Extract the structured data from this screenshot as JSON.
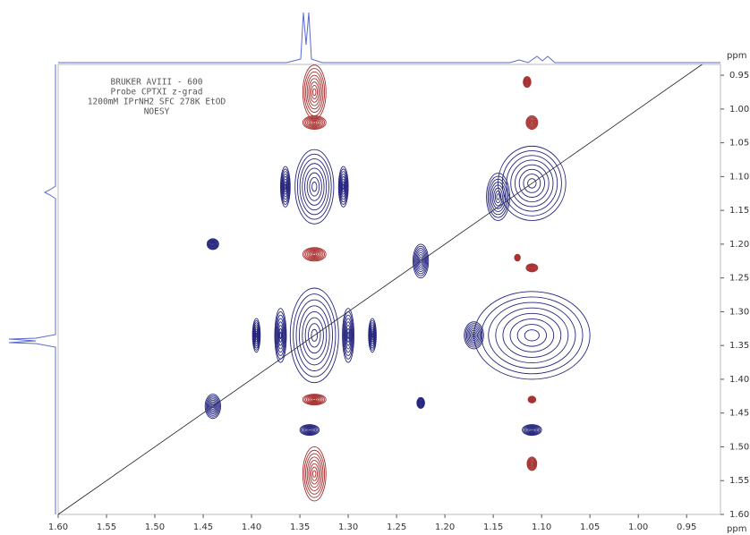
{
  "chart_data": {
    "type": "contour",
    "title_lines": [
      "BRUKER AVIII - 600",
      "Probe CPTXI z-grad",
      "1200mM IPrNH2 SFC 278K EtOD",
      "NOESY"
    ],
    "x_label": "ppm",
    "y_label": "ppm",
    "xlim": [
      1.6,
      0.915
    ],
    "ylim": [
      0.934,
      1.6
    ],
    "xticks": [
      {
        "value": 1.6,
        "label": "1.60"
      },
      1.55,
      {
        "value": 1.5,
        "label": "1.50"
      },
      1.45,
      {
        "value": 1.4,
        "label": "1.40"
      },
      1.35,
      {
        "value": 1.3,
        "label": "1.30"
      },
      1.25,
      {
        "value": 1.2,
        "label": "1.20"
      },
      1.15,
      {
        "value": 1.1,
        "label": "1.10"
      },
      1.05,
      {
        "value": 1.0,
        "label": "1.00"
      },
      0.95
    ],
    "yticks": [
      0.95,
      {
        "value": 1.0,
        "label": "1.00"
      },
      1.05,
      {
        "value": 1.1,
        "label": "1.10"
      },
      1.15,
      {
        "value": 1.2,
        "label": "1.20"
      },
      1.25,
      {
        "value": 1.3,
        "label": "1.30"
      },
      1.35,
      {
        "value": 1.4,
        "label": "1.40"
      },
      1.45,
      {
        "value": 1.5,
        "label": "1.50"
      },
      1.55,
      {
        "value": 1.6,
        "label": "1.60"
      }
    ],
    "peaks": [
      {
        "x": 1.335,
        "y": 1.115,
        "wx": 0.02,
        "wy": 0.055,
        "color": "#26267e"
      },
      {
        "x": 1.335,
        "y": 1.335,
        "wx": 0.025,
        "wy": 0.07,
        "color": "#26267e"
      },
      {
        "x": 1.11,
        "y": 1.11,
        "wx": 0.035,
        "wy": 0.055,
        "color": "#26267e"
      },
      {
        "x": 1.11,
        "y": 1.335,
        "wx": 0.06,
        "wy": 0.065,
        "color": "#26267e"
      },
      {
        "x": 1.44,
        "y": 1.44,
        "wx": 0.008,
        "wy": 0.018,
        "color": "#26267e"
      },
      {
        "x": 1.44,
        "y": 1.2,
        "wx": 0.006,
        "wy": 0.008,
        "color": "#26267e"
      },
      {
        "x": 1.225,
        "y": 1.225,
        "wx": 0.008,
        "wy": 0.025,
        "color": "#26267e"
      },
      {
        "x": 1.34,
        "y": 1.475,
        "wx": 0.01,
        "wy": 0.008,
        "color": "#26267e"
      },
      {
        "x": 1.11,
        "y": 1.475,
        "wx": 0.01,
        "wy": 0.008,
        "color": "#26267e"
      },
      {
        "x": 1.225,
        "y": 1.435,
        "wx": 0.004,
        "wy": 0.008,
        "color": "#26267e"
      },
      {
        "x": 1.365,
        "y": 1.115,
        "wx": 0.005,
        "wy": 0.03,
        "color": "#26267e"
      },
      {
        "x": 1.305,
        "y": 1.115,
        "wx": 0.005,
        "wy": 0.03,
        "color": "#26267e"
      },
      {
        "x": 1.37,
        "y": 1.335,
        "wx": 0.006,
        "wy": 0.04,
        "color": "#26267e"
      },
      {
        "x": 1.3,
        "y": 1.335,
        "wx": 0.006,
        "wy": 0.04,
        "color": "#26267e"
      },
      {
        "x": 1.395,
        "y": 1.335,
        "wx": 0.004,
        "wy": 0.025,
        "color": "#26267e"
      },
      {
        "x": 1.275,
        "y": 1.335,
        "wx": 0.004,
        "wy": 0.025,
        "color": "#26267e"
      },
      {
        "x": 1.145,
        "y": 1.13,
        "wx": 0.012,
        "wy": 0.035,
        "color": "#26267e"
      },
      {
        "x": 1.17,
        "y": 1.335,
        "wx": 0.01,
        "wy": 0.02,
        "color": "#26267e"
      },
      {
        "x": 1.335,
        "y": 0.975,
        "wx": 0.012,
        "wy": 0.04,
        "color": "#a83232"
      },
      {
        "x": 1.335,
        "y": 1.02,
        "wx": 0.012,
        "wy": 0.01,
        "color": "#a83232"
      },
      {
        "x": 1.335,
        "y": 1.215,
        "wx": 0.012,
        "wy": 0.01,
        "color": "#a83232"
      },
      {
        "x": 1.335,
        "y": 1.43,
        "wx": 0.012,
        "wy": 0.008,
        "color": "#a83232"
      },
      {
        "x": 1.335,
        "y": 1.54,
        "wx": 0.012,
        "wy": 0.04,
        "color": "#a83232"
      },
      {
        "x": 1.11,
        "y": 1.02,
        "wx": 0.006,
        "wy": 0.01,
        "color": "#a83232"
      },
      {
        "x": 1.11,
        "y": 1.235,
        "wx": 0.006,
        "wy": 0.006,
        "color": "#a83232"
      },
      {
        "x": 1.11,
        "y": 1.43,
        "wx": 0.004,
        "wy": 0.005,
        "color": "#a83232"
      },
      {
        "x": 1.11,
        "y": 1.525,
        "wx": 0.005,
        "wy": 0.01,
        "color": "#a83232"
      },
      {
        "x": 1.115,
        "y": 0.96,
        "wx": 0.004,
        "wy": 0.008,
        "color": "#a83232"
      },
      {
        "x": 1.125,
        "y": 1.22,
        "wx": 0.003,
        "wy": 0.005,
        "color": "#a83232"
      }
    ]
  }
}
